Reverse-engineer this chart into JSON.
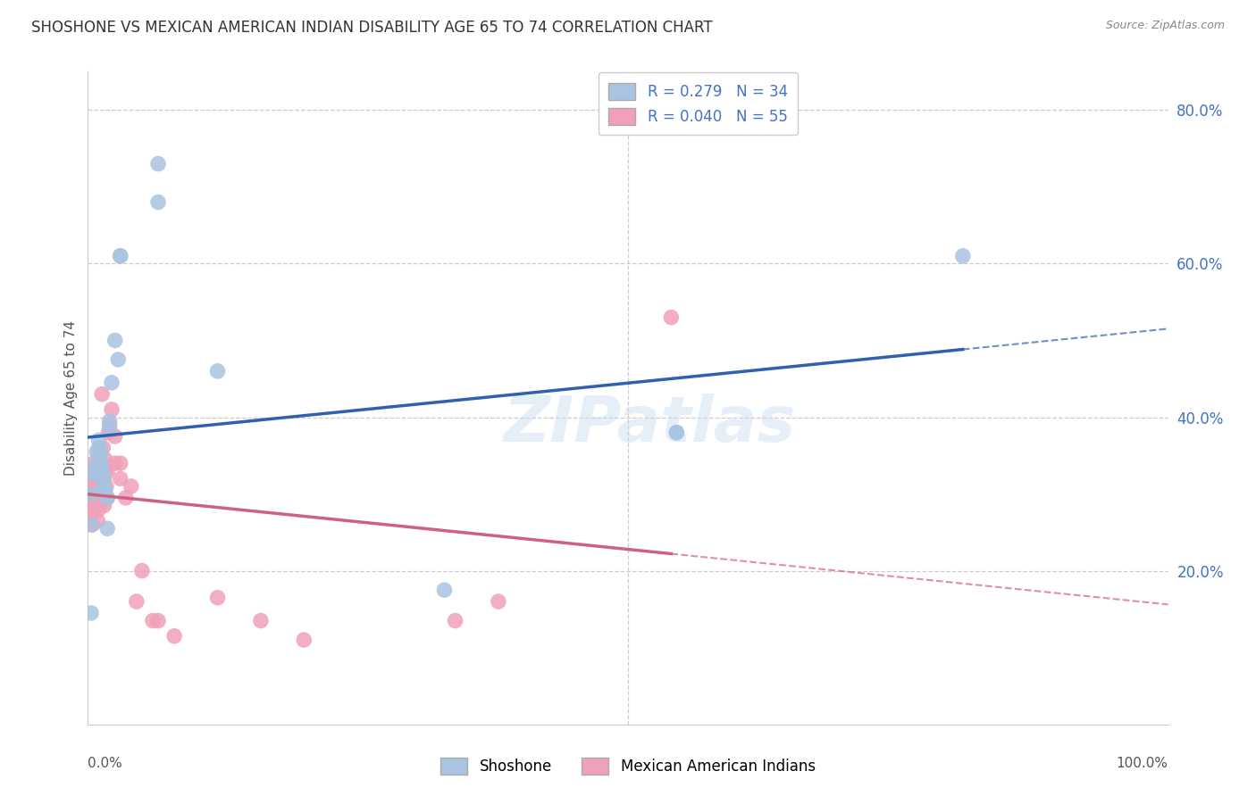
{
  "title": "SHOSHONE VS MEXICAN AMERICAN INDIAN DISABILITY AGE 65 TO 74 CORRELATION CHART",
  "source": "Source: ZipAtlas.com",
  "ylabel": "Disability Age 65 to 74",
  "xlim": [
    0,
    1.0
  ],
  "ylim": [
    0.0,
    0.85
  ],
  "yticks": [
    0.2,
    0.4,
    0.6,
    0.8
  ],
  "legend_bottom": [
    "Shoshone",
    "Mexican American Indians"
  ],
  "shoshone_color": "#a8c4e0",
  "mexican_color": "#f0a0b8",
  "trend_shoshone_color": "#3060b0",
  "trend_mexican_color": "#d06080",
  "watermark": "ZIPatlas",
  "R_shoshone": 0.279,
  "N_shoshone": 34,
  "R_mexican": 0.04,
  "N_mexican": 55,
  "shoshone_x": [
    0.003,
    0.003,
    0.003,
    0.005,
    0.006,
    0.008,
    0.008,
    0.01,
    0.01,
    0.01,
    0.012,
    0.012,
    0.012,
    0.013,
    0.015,
    0.015,
    0.016,
    0.016,
    0.018,
    0.018,
    0.02,
    0.02,
    0.022,
    0.025,
    0.028,
    0.03,
    0.03,
    0.065,
    0.065,
    0.12,
    0.33,
    0.545,
    0.545,
    0.81
  ],
  "shoshone_y": [
    0.145,
    0.26,
    0.3,
    0.33,
    0.325,
    0.34,
    0.355,
    0.35,
    0.36,
    0.37,
    0.355,
    0.34,
    0.335,
    0.33,
    0.32,
    0.31,
    0.305,
    0.3,
    0.295,
    0.255,
    0.395,
    0.385,
    0.445,
    0.5,
    0.475,
    0.61,
    0.61,
    0.68,
    0.73,
    0.46,
    0.175,
    0.38,
    0.38,
    0.61
  ],
  "mexican_x": [
    0.002,
    0.003,
    0.003,
    0.003,
    0.004,
    0.004,
    0.004,
    0.005,
    0.005,
    0.006,
    0.006,
    0.006,
    0.007,
    0.007,
    0.008,
    0.008,
    0.008,
    0.009,
    0.009,
    0.01,
    0.01,
    0.011,
    0.011,
    0.012,
    0.012,
    0.013,
    0.013,
    0.014,
    0.015,
    0.015,
    0.016,
    0.016,
    0.017,
    0.018,
    0.018,
    0.019,
    0.02,
    0.022,
    0.025,
    0.025,
    0.03,
    0.03,
    0.035,
    0.04,
    0.045,
    0.05,
    0.06,
    0.065,
    0.08,
    0.12,
    0.16,
    0.2,
    0.34,
    0.38,
    0.54
  ],
  "mexican_y": [
    0.3,
    0.28,
    0.29,
    0.275,
    0.31,
    0.325,
    0.26,
    0.34,
    0.33,
    0.33,
    0.29,
    0.28,
    0.315,
    0.295,
    0.32,
    0.31,
    0.335,
    0.265,
    0.32,
    0.33,
    0.28,
    0.31,
    0.345,
    0.29,
    0.325,
    0.315,
    0.43,
    0.36,
    0.32,
    0.285,
    0.33,
    0.345,
    0.31,
    0.295,
    0.33,
    0.38,
    0.39,
    0.41,
    0.375,
    0.34,
    0.34,
    0.32,
    0.295,
    0.31,
    0.16,
    0.2,
    0.135,
    0.135,
    0.115,
    0.165,
    0.135,
    0.11,
    0.135,
    0.16,
    0.53
  ]
}
